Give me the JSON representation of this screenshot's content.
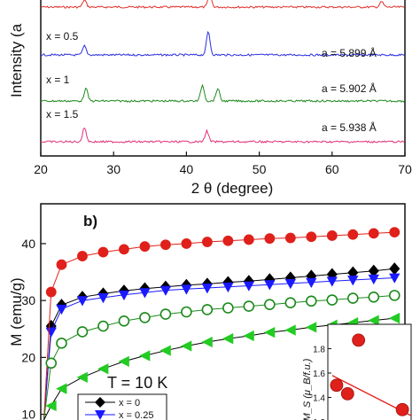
{
  "chart_data": [
    {
      "type": "line",
      "panel": "a",
      "xlabel": "2 θ (degree)",
      "ylabel": "Intensity (a",
      "xlim": [
        20,
        70
      ],
      "x_ticks": [
        20,
        30,
        40,
        50,
        60,
        70
      ],
      "series": [
        {
          "label": "",
          "lattice": "",
          "color": "#e0302a",
          "peaks": [
            26.0,
            43.2,
            66.8
          ]
        },
        {
          "label": "x = 0.5",
          "lattice": "a = 5.899 Å",
          "color": "#2a2ee0",
          "peaks": [
            26.0,
            43.0
          ]
        },
        {
          "label": "x = 1",
          "lattice": "a = 5.902 Å",
          "color": "#1f8a1f",
          "peaks": [
            26.2,
            42.2,
            44.3
          ]
        },
        {
          "label": "x = 1.5",
          "lattice": "a = 5.938 Å",
          "color": "#e0307a",
          "peaks": [
            26.0,
            42.8
          ]
        }
      ]
    },
    {
      "type": "line",
      "panel": "b",
      "panel_label": "b)",
      "annotation": "T = 10 K",
      "ylabel": "M (emu/g)",
      "y_ticks": [
        10,
        20,
        30,
        40
      ],
      "ylim": [
        9,
        47
      ],
      "xlim": [
        0,
        35
      ],
      "x": [
        0.3,
        1,
        2,
        4,
        6,
        8,
        10,
        12,
        14,
        16,
        18,
        20,
        22,
        24,
        26,
        28,
        30,
        32,
        34
      ],
      "series": [
        {
          "name": "x = 0",
          "color": "#000000",
          "marker": "diamond",
          "filled": true,
          "values": [
            9,
            25.5,
            29.2,
            30.6,
            31.2,
            31.7,
            32.1,
            32.4,
            32.7,
            32.9,
            33.2,
            33.4,
            33.7,
            34.0,
            34.3,
            34.6,
            34.9,
            35.2,
            35.6
          ]
        },
        {
          "name": "x = 0.25",
          "color": "#1a1aff",
          "marker": "triangle-down",
          "filled": true,
          "values": [
            9,
            24.5,
            28.5,
            30.0,
            30.5,
            31.0,
            31.4,
            31.8,
            32.0,
            32.2,
            32.4,
            32.6,
            32.8,
            33.0,
            33.2,
            33.4,
            33.6,
            33.8,
            34.0
          ]
        },
        {
          "name": "",
          "color": "#e0201a",
          "marker": "circle",
          "filled": true,
          "values": [
            9,
            31.5,
            36.3,
            37.8,
            38.5,
            39.0,
            39.5,
            39.8,
            40.0,
            40.3,
            40.5,
            40.7,
            40.9,
            41.0,
            41.2,
            41.4,
            41.6,
            41.8,
            42.0
          ]
        },
        {
          "name": "",
          "color": "#1a8a1a",
          "marker": "circle",
          "filled": false,
          "values": [
            9,
            19,
            22.5,
            24.5,
            25.5,
            26.4,
            27.0,
            27.6,
            28.0,
            28.4,
            28.7,
            29.0,
            29.3,
            29.6,
            29.9,
            30.1,
            30.4,
            30.6,
            30.9
          ]
        },
        {
          "name": "",
          "color": "#22cc22",
          "marker": "triangle-left",
          "filled": true,
          "values": [
            9,
            11.5,
            14.5,
            16.5,
            18.0,
            19.3,
            20.3,
            21.2,
            22.0,
            22.7,
            23.3,
            23.8,
            24.4,
            24.8,
            25.3,
            25.7,
            26.1,
            26.5,
            26.9
          ]
        }
      ],
      "inset": {
        "ylabel": "M_S (μ_B/f.u.)",
        "y_ticks": [
          "1.2",
          "1.4",
          "1.6",
          "1.8"
        ],
        "ylim": [
          1.2,
          2.0
        ],
        "xlim": [
          -0.2,
          1.7
        ],
        "points": [
          {
            "x": 0,
            "y": 1.5
          },
          {
            "x": 0.25,
            "y": 1.43
          },
          {
            "x": 0.5,
            "y": 1.87
          },
          {
            "x": 1.5,
            "y": 1.3
          }
        ],
        "fit": [
          {
            "x": -0.1,
            "y": 1.58
          },
          {
            "x": 1.7,
            "y": 1.25
          }
        ],
        "color": "#e0201a"
      }
    }
  ]
}
